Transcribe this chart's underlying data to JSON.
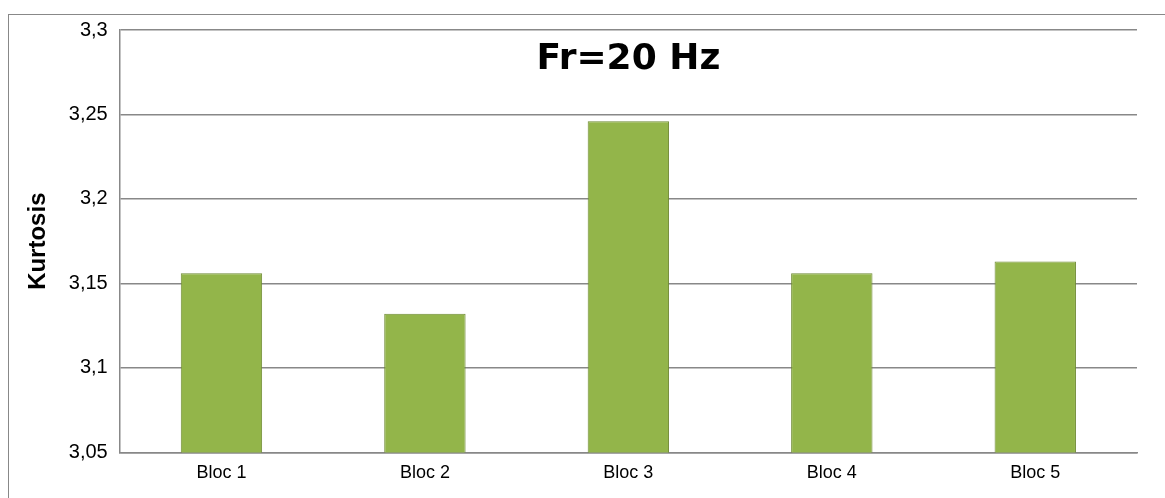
{
  "chart_data": {
    "type": "bar",
    "title": "Fr=20 Hz",
    "ylabel": "Kurtosis",
    "categories": [
      "Bloc 1",
      "Bloc 2",
      "Bloc 3",
      "Bloc 4",
      "Bloc 5"
    ],
    "values": [
      3.156,
      3.132,
      3.246,
      3.156,
      3.163
    ],
    "color": "#93b54a",
    "ylim": [
      3.05,
      3.3
    ],
    "yticks": [
      {
        "value": 3.05,
        "label": "3,05"
      },
      {
        "value": 3.1,
        "label": "3,1"
      },
      {
        "value": 3.15,
        "label": "3,15"
      },
      {
        "value": 3.2,
        "label": "3,2"
      },
      {
        "value": 3.25,
        "label": "3,25"
      },
      {
        "value": 3.3,
        "label": "3,3"
      }
    ],
    "grid": "y",
    "legend": false
  }
}
